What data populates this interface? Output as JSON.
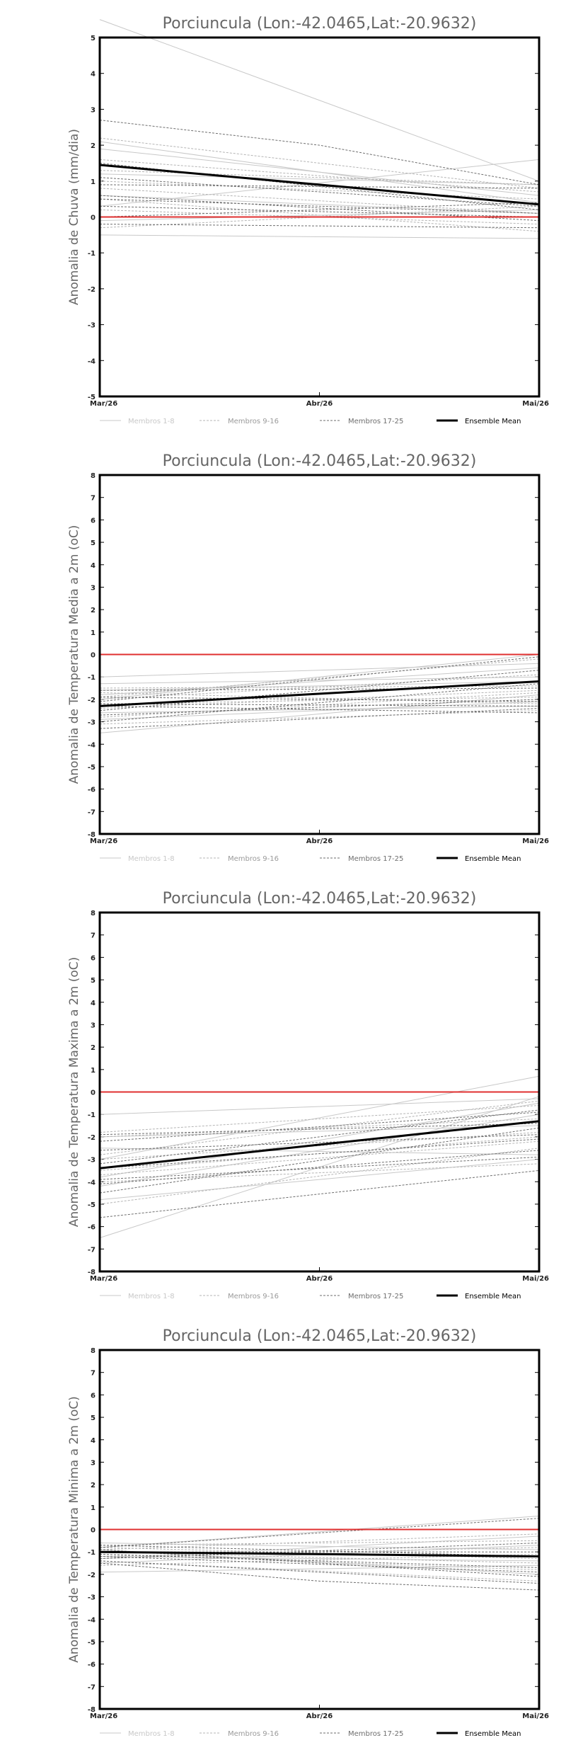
{
  "chart_data": [
    {
      "type": "line",
      "title": "Porciuncula (Lon:-42.0465,Lat:-20.9632)",
      "ylabel": "Anomalia de Chuva (mm/dia)",
      "xlabel": "",
      "categories": [
        "Mar/26",
        "Abr/26",
        "Mai/26"
      ],
      "ylim": [
        -5,
        5
      ],
      "yticks": [
        -5,
        -4,
        -3,
        -2,
        -1,
        0,
        1,
        2,
        3,
        4,
        5
      ],
      "legend_position": "bottom",
      "legend": [
        "Membros 1-8",
        "Membros 9-16",
        "Membros 17-25",
        "Ensemble Mean"
      ],
      "reference_line": {
        "value": 0,
        "color": "#e03030"
      },
      "series": [
        {
          "group": 0,
          "values": [
            5.5,
            null,
            1.0
          ]
        },
        {
          "group": 0,
          "values": [
            2.1,
            null,
            0.4
          ]
        },
        {
          "group": 0,
          "values": [
            0.3,
            null,
            1.6
          ]
        },
        {
          "group": 0,
          "values": [
            -0.5,
            null,
            -0.6
          ]
        },
        {
          "group": 0,
          "values": [
            0.6,
            null,
            0.1
          ]
        },
        {
          "group": 0,
          "values": [
            1.2,
            null,
            0.9
          ]
        },
        {
          "group": 0,
          "values": [
            -0.1,
            null,
            0.2
          ]
        },
        {
          "group": 0,
          "values": [
            1.9,
            null,
            0.6
          ]
        },
        {
          "group": 1,
          "values": [
            2.2,
            null,
            0.8
          ]
        },
        {
          "group": 1,
          "values": [
            0.5,
            null,
            -0.4
          ]
        },
        {
          "group": 1,
          "values": [
            1.0,
            null,
            0.5
          ]
        },
        {
          "group": 1,
          "values": [
            -0.3,
            null,
            0.3
          ]
        },
        {
          "group": 1,
          "values": [
            0.2,
            null,
            -0.2
          ]
        },
        {
          "group": 1,
          "values": [
            1.6,
            null,
            0.7
          ]
        },
        {
          "group": 1,
          "values": [
            0.8,
            null,
            0.1
          ]
        },
        {
          "group": 1,
          "values": [
            1.3,
            null,
            0.9
          ]
        },
        {
          "group": 2,
          "values": [
            2.7,
            2.0,
            0.9
          ]
        },
        {
          "group": 2,
          "values": [
            0.6,
            null,
            -0.1
          ]
        },
        {
          "group": 2,
          "values": [
            1.1,
            null,
            0.3
          ]
        },
        {
          "group": 2,
          "values": [
            0.0,
            null,
            0.4
          ]
        },
        {
          "group": 2,
          "values": [
            1.5,
            null,
            0.2
          ]
        },
        {
          "group": 2,
          "values": [
            0.3,
            null,
            0.0
          ]
        },
        {
          "group": 2,
          "values": [
            0.9,
            null,
            0.8
          ]
        },
        {
          "group": 2,
          "values": [
            -0.2,
            null,
            -0.3
          ]
        },
        {
          "group": 2,
          "values": [
            0.5,
            null,
            0.1
          ]
        },
        {
          "group": 3,
          "values": [
            1.45,
            null,
            0.35
          ]
        }
      ]
    },
    {
      "type": "line",
      "title": "Porciuncula (Lon:-42.0465,Lat:-20.9632)",
      "ylabel": "Anomalia de Temperatura Media a 2m (oC)",
      "xlabel": "",
      "categories": [
        "Mar/26",
        "Abr/26",
        "Mai/26"
      ],
      "ylim": [
        -8,
        8
      ],
      "yticks": [
        -8,
        -7,
        -6,
        -5,
        -4,
        -3,
        -2,
        -1,
        0,
        1,
        2,
        3,
        4,
        5,
        6,
        7,
        8
      ],
      "legend_position": "bottom",
      "legend": [
        "Membros 1-8",
        "Membros 9-16",
        "Membros 17-25",
        "Ensemble Mean"
      ],
      "reference_line": {
        "value": 0,
        "color": "#e03030"
      },
      "series": [
        {
          "group": 0,
          "values": [
            -1.0,
            null,
            -0.4
          ]
        },
        {
          "group": 0,
          "values": [
            -2.0,
            null,
            0.0
          ]
        },
        {
          "group": 0,
          "values": [
            -1.6,
            null,
            -1.2
          ]
        },
        {
          "group": 0,
          "values": [
            -3.5,
            null,
            -1.8
          ]
        },
        {
          "group": 0,
          "values": [
            -2.6,
            null,
            -2.3
          ]
        },
        {
          "group": 0,
          "values": [
            -1.3,
            null,
            -1.0
          ]
        },
        {
          "group": 0,
          "values": [
            -2.9,
            null,
            -2.1
          ]
        },
        {
          "group": 0,
          "values": [
            -1.8,
            null,
            -0.6
          ]
        },
        {
          "group": 1,
          "values": [
            -1.5,
            null,
            -1.4
          ]
        },
        {
          "group": 1,
          "values": [
            -2.2,
            null,
            -1.9
          ]
        },
        {
          "group": 1,
          "values": [
            -3.1,
            null,
            -2.5
          ]
        },
        {
          "group": 1,
          "values": [
            -1.9,
            null,
            -0.2
          ]
        },
        {
          "group": 1,
          "values": [
            -2.4,
            null,
            -1.6
          ]
        },
        {
          "group": 1,
          "values": [
            -1.7,
            null,
            -2.2
          ]
        },
        {
          "group": 1,
          "values": [
            -2.8,
            null,
            -1.7
          ]
        },
        {
          "group": 1,
          "values": [
            -2.0,
            null,
            -0.9
          ]
        },
        {
          "group": 2,
          "values": [
            -3.3,
            null,
            -2.4
          ]
        },
        {
          "group": 2,
          "values": [
            -2.1,
            null,
            -0.1
          ]
        },
        {
          "group": 2,
          "values": [
            -2.7,
            null,
            -2.0
          ]
        },
        {
          "group": 2,
          "values": [
            -1.6,
            null,
            -1.5
          ]
        },
        {
          "group": 2,
          "values": [
            -2.3,
            null,
            -2.6
          ]
        },
        {
          "group": 2,
          "values": [
            -2.5,
            null,
            -0.7
          ]
        },
        {
          "group": 2,
          "values": [
            -1.9,
            null,
            -2.1
          ]
        },
        {
          "group": 2,
          "values": [
            -3.0,
            null,
            -1.3
          ]
        },
        {
          "group": 2,
          "values": [
            -2.2,
            null,
            -2.3
          ]
        },
        {
          "group": 3,
          "values": [
            -2.3,
            null,
            -1.2
          ]
        }
      ]
    },
    {
      "type": "line",
      "title": "Porciuncula (Lon:-42.0465,Lat:-20.9632)",
      "ylabel": "Anomalia de Temperatura Maxima a 2m (oC)",
      "xlabel": "",
      "categories": [
        "Mar/26",
        "Abr/26",
        "Mai/26"
      ],
      "ylim": [
        -8,
        8
      ],
      "yticks": [
        -8,
        -7,
        -6,
        -5,
        -4,
        -3,
        -2,
        -1,
        0,
        1,
        2,
        3,
        4,
        5,
        6,
        7,
        8
      ],
      "legend_position": "bottom",
      "legend": [
        "Membros 1-8",
        "Membros 9-16",
        "Membros 17-25",
        "Ensemble Mean"
      ],
      "reference_line": {
        "value": 0,
        "color": "#e03030"
      },
      "series": [
        {
          "group": 0,
          "values": [
            -6.5,
            null,
            -0.2
          ]
        },
        {
          "group": 0,
          "values": [
            -3.0,
            null,
            0.7
          ]
        },
        {
          "group": 0,
          "values": [
            -1.0,
            null,
            -0.3
          ]
        },
        {
          "group": 0,
          "values": [
            -4.8,
            null,
            -3.0
          ]
        },
        {
          "group": 0,
          "values": [
            -2.0,
            null,
            -1.5
          ]
        },
        {
          "group": 0,
          "values": [
            -3.8,
            null,
            -0.5
          ]
        },
        {
          "group": 0,
          "values": [
            -2.5,
            null,
            -2.8
          ]
        },
        {
          "group": 0,
          "values": [
            -4.2,
            null,
            -1.0
          ]
        },
        {
          "group": 1,
          "values": [
            -3.5,
            null,
            -2.0
          ]
        },
        {
          "group": 1,
          "values": [
            -2.0,
            null,
            -1.2
          ]
        },
        {
          "group": 1,
          "values": [
            -5.0,
            null,
            -2.5
          ]
        },
        {
          "group": 1,
          "values": [
            -1.8,
            null,
            -0.6
          ]
        },
        {
          "group": 1,
          "values": [
            -3.0,
            null,
            -1.8
          ]
        },
        {
          "group": 1,
          "values": [
            -4.0,
            null,
            -3.2
          ]
        },
        {
          "group": 1,
          "values": [
            -2.8,
            null,
            -0.4
          ]
        },
        {
          "group": 1,
          "values": [
            -3.7,
            null,
            -2.2
          ]
        },
        {
          "group": 2,
          "values": [
            -5.6,
            null,
            -3.5
          ]
        },
        {
          "group": 2,
          "values": [
            -3.2,
            null,
            -0.8
          ]
        },
        {
          "group": 2,
          "values": [
            -2.6,
            null,
            -1.9
          ]
        },
        {
          "group": 2,
          "values": [
            -4.1,
            null,
            -2.6
          ]
        },
        {
          "group": 2,
          "values": [
            -1.9,
            null,
            -1.4
          ]
        },
        {
          "group": 2,
          "values": [
            -3.9,
            null,
            -2.9
          ]
        },
        {
          "group": 2,
          "values": [
            -2.2,
            null,
            -0.9
          ]
        },
        {
          "group": 2,
          "values": [
            -3.4,
            null,
            -2.1
          ]
        },
        {
          "group": 2,
          "values": [
            -4.5,
            null,
            -1.6
          ]
        },
        {
          "group": 3,
          "values": [
            -3.4,
            null,
            -1.3
          ]
        }
      ]
    },
    {
      "type": "line",
      "title": "Porciuncula (Lon:-42.0465,Lat:-20.9632)",
      "ylabel": "Anomalia de Temperatura Minima a 2m (oC)",
      "xlabel": "",
      "categories": [
        "Mar/26",
        "Abr/26",
        "Mai/26"
      ],
      "ylim": [
        -8,
        8
      ],
      "yticks": [
        -8,
        -7,
        -6,
        -5,
        -4,
        -3,
        -2,
        -1,
        0,
        1,
        2,
        3,
        4,
        5,
        6,
        7,
        8
      ],
      "legend_position": "bottom",
      "legend": [
        "Membros 1-8",
        "Membros 9-16",
        "Membros 17-25",
        "Ensemble Mean"
      ],
      "reference_line": {
        "value": 0,
        "color": "#e03030"
      },
      "series": [
        {
          "group": 0,
          "values": [
            -0.8,
            null,
            0.6
          ]
        },
        {
          "group": 0,
          "values": [
            -1.3,
            null,
            -0.3
          ]
        },
        {
          "group": 0,
          "values": [
            -0.6,
            null,
            -0.9
          ]
        },
        {
          "group": 0,
          "values": [
            -1.9,
            null,
            -1.6
          ]
        },
        {
          "group": 0,
          "values": [
            -1.0,
            null,
            -1.2
          ]
        },
        {
          "group": 0,
          "values": [
            -1.5,
            null,
            -0.7
          ]
        },
        {
          "group": 0,
          "values": [
            -0.9,
            null,
            -2.0
          ]
        },
        {
          "group": 0,
          "values": [
            -1.2,
            null,
            -1.4
          ]
        },
        {
          "group": 1,
          "values": [
            -0.7,
            null,
            -0.5
          ]
        },
        {
          "group": 1,
          "values": [
            -1.1,
            null,
            -1.8
          ]
        },
        {
          "group": 1,
          "values": [
            -1.6,
            null,
            -1.1
          ]
        },
        {
          "group": 1,
          "values": [
            -0.9,
            null,
            -0.2
          ]
        },
        {
          "group": 1,
          "values": [
            -1.4,
            null,
            -2.3
          ]
        },
        {
          "group": 1,
          "values": [
            -1.0,
            null,
            -1.5
          ]
        },
        {
          "group": 1,
          "values": [
            -1.2,
            null,
            -0.8
          ]
        },
        {
          "group": 1,
          "values": [
            -0.8,
            null,
            -1.3
          ]
        },
        {
          "group": 2,
          "values": [
            -1.5,
            -2.3,
            -2.7
          ]
        },
        {
          "group": 2,
          "values": [
            -0.8,
            null,
            0.5
          ]
        },
        {
          "group": 2,
          "values": [
            -1.2,
            null,
            -1.9
          ]
        },
        {
          "group": 2,
          "values": [
            -1.0,
            null,
            -1.0
          ]
        },
        {
          "group": 2,
          "values": [
            -0.9,
            null,
            -2.1
          ]
        },
        {
          "group": 2,
          "values": [
            -1.3,
            null,
            -0.6
          ]
        },
        {
          "group": 2,
          "values": [
            -1.1,
            null,
            -1.7
          ]
        },
        {
          "group": 2,
          "values": [
            -0.7,
            null,
            -1.2
          ]
        },
        {
          "group": 2,
          "values": [
            -1.4,
            null,
            -2.4
          ]
        },
        {
          "group": 3,
          "values": [
            -1.0,
            null,
            -1.2
          ]
        }
      ]
    }
  ]
}
